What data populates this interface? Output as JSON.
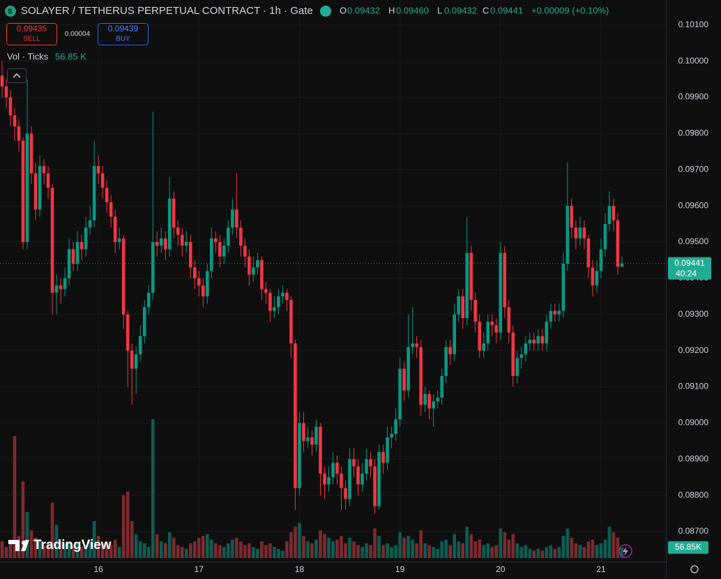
{
  "chart_data": {
    "type": "candlestick",
    "title": "SOLAYER / TETHERUS PERPETUAL CONTRACT · 1h · Gate",
    "header": {
      "o_label": "O",
      "open": "0.09432",
      "h_label": "H",
      "high": "0.09460",
      "l_label": "L",
      "low": "0.09432",
      "c_label": "C",
      "close": "0.09441",
      "change": "+0.00009 (+0.10%)"
    },
    "trade": {
      "sell_price": "0.09435",
      "sell": "SELL",
      "spread": "0.00004",
      "buy_price": "0.09439",
      "buy": "BUY"
    },
    "volume_legend": {
      "label": "Vol · Ticks",
      "value": "56.85 K"
    },
    "volume_badge": "56.85K",
    "last_price": {
      "value": 0.09441,
      "countdown": "40:24"
    },
    "brand": "TradingView",
    "up_color": "#089981",
    "down_color": "#f23645",
    "volume_up_color": "#0b5e52",
    "volume_down_color": "#7d2a31",
    "grid": true,
    "xlim": [
      -0.5,
      158.5
    ],
    "xticks": [
      {
        "value": 23,
        "label": "16"
      },
      {
        "value": 47,
        "label": "17"
      },
      {
        "value": 71,
        "label": "18"
      },
      {
        "value": 95,
        "label": "19"
      },
      {
        "value": 119,
        "label": "20"
      },
      {
        "value": 143,
        "label": "21"
      }
    ],
    "ylim": [
      0.08617,
      0.10169
    ],
    "yticks": [
      {
        "value": 0.101,
        "label": "0.10100"
      },
      {
        "value": 0.1,
        "label": "0.10000"
      },
      {
        "value": 0.099,
        "label": "0.09900"
      },
      {
        "value": 0.098,
        "label": "0.09800"
      },
      {
        "value": 0.097,
        "label": "0.09700"
      },
      {
        "value": 0.096,
        "label": "0.09600"
      },
      {
        "value": 0.095,
        "label": "0.09500"
      },
      {
        "value": 0.094,
        "label": "0.09400"
      },
      {
        "value": 0.093,
        "label": "0.09300"
      },
      {
        "value": 0.092,
        "label": "0.09200"
      },
      {
        "value": 0.091,
        "label": "0.09100"
      },
      {
        "value": 0.09,
        "label": "0.09000"
      },
      {
        "value": 0.089,
        "label": "0.08900"
      },
      {
        "value": 0.088,
        "label": "0.08800"
      },
      {
        "value": 0.087,
        "label": "0.08700"
      }
    ],
    "y2lim": [
      0,
      1000000
    ],
    "candle_fields": [
      "open",
      "high",
      "low",
      "close",
      "volume"
    ],
    "candles": [
      [
        0.0996,
        0.1,
        0.099,
        0.0993,
        90000
      ],
      [
        0.0993,
        0.0995,
        0.0987,
        0.099,
        60000
      ],
      [
        0.099,
        0.0992,
        0.0982,
        0.0985,
        80000
      ],
      [
        0.0985,
        0.0987,
        0.0978,
        0.0982,
        660000
      ],
      [
        0.0982,
        0.0984,
        0.0975,
        0.0978,
        120000
      ],
      [
        0.0978,
        0.0979,
        0.0948,
        0.095,
        415000
      ],
      [
        0.095,
        0.0995,
        0.0948,
        0.098,
        250000
      ],
      [
        0.098,
        0.0982,
        0.0966,
        0.0969,
        150000
      ],
      [
        0.0969,
        0.0972,
        0.0956,
        0.0959,
        110000
      ],
      [
        0.0959,
        0.0974,
        0.0957,
        0.0971,
        100000
      ],
      [
        0.0971,
        0.0973,
        0.0966,
        0.0969,
        70000
      ],
      [
        0.0969,
        0.0971,
        0.0962,
        0.0965,
        80000
      ],
      [
        0.0965,
        0.0966,
        0.093,
        0.0936,
        300000
      ],
      [
        0.0936,
        0.0941,
        0.093,
        0.0938,
        180000
      ],
      [
        0.0938,
        0.094,
        0.0933,
        0.0937,
        90000
      ],
      [
        0.0937,
        0.0943,
        0.0935,
        0.094,
        80000
      ],
      [
        0.094,
        0.0951,
        0.0938,
        0.0948,
        90000
      ],
      [
        0.0948,
        0.095,
        0.0942,
        0.0944,
        70000
      ],
      [
        0.0944,
        0.0953,
        0.0942,
        0.095,
        80000
      ],
      [
        0.095,
        0.0952,
        0.0945,
        0.0948,
        60000
      ],
      [
        0.0948,
        0.0957,
        0.0946,
        0.0954,
        70000
      ],
      [
        0.0954,
        0.096,
        0.0952,
        0.0956,
        90000
      ],
      [
        0.0956,
        0.0978,
        0.0954,
        0.0971,
        200000
      ],
      [
        0.0971,
        0.0974,
        0.0966,
        0.0969,
        120000
      ],
      [
        0.0969,
        0.0971,
        0.0962,
        0.0965,
        80000
      ],
      [
        0.0965,
        0.0967,
        0.0958,
        0.0961,
        90000
      ],
      [
        0.0961,
        0.0963,
        0.0954,
        0.0957,
        70000
      ],
      [
        0.0957,
        0.0959,
        0.0947,
        0.095,
        100000
      ],
      [
        0.095,
        0.0954,
        0.0948,
        0.0951,
        60000
      ],
      [
        0.0951,
        0.0952,
        0.0926,
        0.093,
        340000
      ],
      [
        0.093,
        0.0931,
        0.091,
        0.092,
        360000
      ],
      [
        0.092,
        0.0922,
        0.0905,
        0.0915,
        200000
      ],
      [
        0.0915,
        0.0921,
        0.0908,
        0.0919,
        130000
      ],
      [
        0.0919,
        0.0927,
        0.0917,
        0.0924,
        90000
      ],
      [
        0.0924,
        0.0934,
        0.0922,
        0.0932,
        80000
      ],
      [
        0.0932,
        0.0938,
        0.093,
        0.0936,
        60000
      ],
      [
        0.0936,
        0.0986,
        0.0934,
        0.095,
        751000
      ],
      [
        0.095,
        0.0953,
        0.0946,
        0.0949,
        130000
      ],
      [
        0.0949,
        0.0954,
        0.0947,
        0.0951,
        90000
      ],
      [
        0.0951,
        0.0953,
        0.0945,
        0.0948,
        80000
      ],
      [
        0.0948,
        0.0968,
        0.0946,
        0.0962,
        140000
      ],
      [
        0.0962,
        0.0964,
        0.0951,
        0.0954,
        110000
      ],
      [
        0.0954,
        0.0956,
        0.0949,
        0.0952,
        70000
      ],
      [
        0.0952,
        0.0954,
        0.0946,
        0.0949,
        60000
      ],
      [
        0.0949,
        0.0953,
        0.0947,
        0.095,
        50000
      ],
      [
        0.095,
        0.0952,
        0.094,
        0.0943,
        80000
      ],
      [
        0.0943,
        0.0945,
        0.0937,
        0.094,
        90000
      ],
      [
        0.094,
        0.0942,
        0.0935,
        0.0938,
        110000
      ],
      [
        0.0938,
        0.094,
        0.0932,
        0.0935,
        120000
      ],
      [
        0.0935,
        0.0944,
        0.0933,
        0.0942,
        130000
      ],
      [
        0.0942,
        0.0954,
        0.094,
        0.0951,
        100000
      ],
      [
        0.0951,
        0.0953,
        0.0947,
        0.095,
        80000
      ],
      [
        0.095,
        0.0952,
        0.0943,
        0.0946,
        70000
      ],
      [
        0.0946,
        0.0951,
        0.0944,
        0.0949,
        60000
      ],
      [
        0.0949,
        0.0956,
        0.0947,
        0.0954,
        80000
      ],
      [
        0.0954,
        0.0962,
        0.0952,
        0.0959,
        100000
      ],
      [
        0.0959,
        0.0969,
        0.0951,
        0.0954,
        110000
      ],
      [
        0.0954,
        0.0956,
        0.0946,
        0.0949,
        90000
      ],
      [
        0.0949,
        0.0951,
        0.0943,
        0.0946,
        70000
      ],
      [
        0.0946,
        0.0948,
        0.0938,
        0.0941,
        80000
      ],
      [
        0.0941,
        0.0946,
        0.0939,
        0.0943,
        60000
      ],
      [
        0.0943,
        0.0947,
        0.0941,
        0.0945,
        50000
      ],
      [
        0.0945,
        0.0946,
        0.0934,
        0.0937,
        90000
      ],
      [
        0.0937,
        0.0939,
        0.0933,
        0.0936,
        70000
      ],
      [
        0.0936,
        0.0937,
        0.0928,
        0.0931,
        80000
      ],
      [
        0.0931,
        0.0935,
        0.0929,
        0.0932,
        60000
      ],
      [
        0.0932,
        0.0937,
        0.093,
        0.0935,
        50000
      ],
      [
        0.0935,
        0.0938,
        0.0933,
        0.0936,
        40000
      ],
      [
        0.0936,
        0.0937,
        0.0931,
        0.0934,
        90000
      ],
      [
        0.0934,
        0.0935,
        0.0918,
        0.0922,
        140000
      ],
      [
        0.0922,
        0.0923,
        0.0876,
        0.0882,
        170000
      ],
      [
        0.0882,
        0.0903,
        0.088,
        0.09,
        190000
      ],
      [
        0.09,
        0.0903,
        0.0892,
        0.0895,
        120000
      ],
      [
        0.0895,
        0.0899,
        0.0893,
        0.0896,
        90000
      ],
      [
        0.0896,
        0.0898,
        0.0891,
        0.0894,
        80000
      ],
      [
        0.0894,
        0.0901,
        0.0892,
        0.0899,
        100000
      ],
      [
        0.0899,
        0.09,
        0.088,
        0.0886,
        150000
      ],
      [
        0.0886,
        0.0888,
        0.0879,
        0.0883,
        130000
      ],
      [
        0.0883,
        0.0888,
        0.0881,
        0.0885,
        110000
      ],
      [
        0.0885,
        0.0892,
        0.0883,
        0.0889,
        90000
      ],
      [
        0.0889,
        0.0891,
        0.0883,
        0.0886,
        100000
      ],
      [
        0.0886,
        0.0888,
        0.0876,
        0.0882,
        120000
      ],
      [
        0.0882,
        0.0884,
        0.0876,
        0.0879,
        80000
      ],
      [
        0.0879,
        0.0893,
        0.0877,
        0.089,
        110000
      ],
      [
        0.089,
        0.0893,
        0.0885,
        0.0888,
        90000
      ],
      [
        0.0888,
        0.089,
        0.088,
        0.0883,
        70000
      ],
      [
        0.0883,
        0.0889,
        0.0881,
        0.0886,
        60000
      ],
      [
        0.0886,
        0.0893,
        0.0884,
        0.089,
        80000
      ],
      [
        0.089,
        0.0892,
        0.0885,
        0.0888,
        70000
      ],
      [
        0.0888,
        0.089,
        0.0875,
        0.0877,
        160000
      ],
      [
        0.0877,
        0.0894,
        0.0876,
        0.0892,
        120000
      ],
      [
        0.0892,
        0.0894,
        0.0886,
        0.0889,
        70000
      ],
      [
        0.0889,
        0.0899,
        0.0887,
        0.0896,
        80000
      ],
      [
        0.0896,
        0.0899,
        0.0893,
        0.0897,
        60000
      ],
      [
        0.0897,
        0.0904,
        0.0895,
        0.0901,
        70000
      ],
      [
        0.0901,
        0.0918,
        0.0899,
        0.0915,
        140000
      ],
      [
        0.0915,
        0.0917,
        0.0906,
        0.0909,
        110000
      ],
      [
        0.0909,
        0.093,
        0.0907,
        0.0921,
        120000
      ],
      [
        0.0921,
        0.0932,
        0.0919,
        0.0922,
        100000
      ],
      [
        0.0922,
        0.0924,
        0.0918,
        0.0921,
        80000
      ],
      [
        0.0921,
        0.0923,
        0.0902,
        0.0905,
        150000
      ],
      [
        0.0905,
        0.091,
        0.0903,
        0.0908,
        80000
      ],
      [
        0.0908,
        0.0909,
        0.0901,
        0.0904,
        70000
      ],
      [
        0.0904,
        0.0908,
        0.0899,
        0.0906,
        60000
      ],
      [
        0.0906,
        0.0909,
        0.0904,
        0.0907,
        50000
      ],
      [
        0.0907,
        0.0915,
        0.0905,
        0.0913,
        90000
      ],
      [
        0.0913,
        0.0923,
        0.0911,
        0.0921,
        100000
      ],
      [
        0.0921,
        0.0923,
        0.0916,
        0.0919,
        70000
      ],
      [
        0.0919,
        0.0933,
        0.0917,
        0.093,
        130000
      ],
      [
        0.093,
        0.0937,
        0.0928,
        0.0935,
        90000
      ],
      [
        0.0935,
        0.0937,
        0.0926,
        0.0929,
        80000
      ],
      [
        0.0929,
        0.0957,
        0.0927,
        0.0947,
        170000
      ],
      [
        0.0947,
        0.0949,
        0.0931,
        0.0934,
        130000
      ],
      [
        0.0934,
        0.0936,
        0.0925,
        0.0928,
        90000
      ],
      [
        0.0928,
        0.093,
        0.0918,
        0.092,
        100000
      ],
      [
        0.092,
        0.0925,
        0.0918,
        0.0922,
        70000
      ],
      [
        0.0922,
        0.093,
        0.092,
        0.0928,
        80000
      ],
      [
        0.0928,
        0.093,
        0.0924,
        0.0927,
        60000
      ],
      [
        0.0927,
        0.0929,
        0.0922,
        0.0925,
        70000
      ],
      [
        0.0925,
        0.095,
        0.0923,
        0.0947,
        160000
      ],
      [
        0.0947,
        0.0949,
        0.0929,
        0.0932,
        140000
      ],
      [
        0.0932,
        0.0934,
        0.0922,
        0.0925,
        100000
      ],
      [
        0.0925,
        0.0927,
        0.091,
        0.0913,
        130000
      ],
      [
        0.0913,
        0.092,
        0.0911,
        0.0918,
        80000
      ],
      [
        0.0918,
        0.0921,
        0.0915,
        0.0919,
        60000
      ],
      [
        0.0919,
        0.0924,
        0.0917,
        0.0922,
        70000
      ],
      [
        0.0922,
        0.0925,
        0.092,
        0.0923,
        50000
      ],
      [
        0.0923,
        0.0925,
        0.092,
        0.0922,
        40000
      ],
      [
        0.0922,
        0.0926,
        0.092,
        0.0924,
        50000
      ],
      [
        0.0924,
        0.0926,
        0.092,
        0.0922,
        40000
      ],
      [
        0.0922,
        0.093,
        0.092,
        0.0928,
        60000
      ],
      [
        0.0928,
        0.0933,
        0.0926,
        0.0931,
        70000
      ],
      [
        0.0931,
        0.0933,
        0.0928,
        0.093,
        50000
      ],
      [
        0.093,
        0.0933,
        0.0928,
        0.0931,
        60000
      ],
      [
        0.0931,
        0.0947,
        0.0929,
        0.0944,
        120000
      ],
      [
        0.0944,
        0.0972,
        0.0942,
        0.096,
        160000
      ],
      [
        0.096,
        0.0962,
        0.0951,
        0.0954,
        110000
      ],
      [
        0.0954,
        0.0956,
        0.0948,
        0.0951,
        80000
      ],
      [
        0.0951,
        0.0957,
        0.0949,
        0.0954,
        70000
      ],
      [
        0.0954,
        0.0956,
        0.0948,
        0.0951,
        60000
      ],
      [
        0.0951,
        0.0952,
        0.094,
        0.0943,
        90000
      ],
      [
        0.0943,
        0.0945,
        0.0935,
        0.0938,
        100000
      ],
      [
        0.0938,
        0.0945,
        0.0936,
        0.0942,
        70000
      ],
      [
        0.0942,
        0.0951,
        0.094,
        0.0948,
        80000
      ],
      [
        0.0948,
        0.0958,
        0.0946,
        0.0955,
        100000
      ],
      [
        0.0955,
        0.0964,
        0.0953,
        0.096,
        170000
      ],
      [
        0.096,
        0.0962,
        0.0953,
        0.0956,
        140000
      ],
      [
        0.0956,
        0.0958,
        0.0941,
        0.09432,
        110000
      ],
      [
        0.09432,
        0.0946,
        0.09432,
        0.09441,
        56850
      ]
    ]
  }
}
